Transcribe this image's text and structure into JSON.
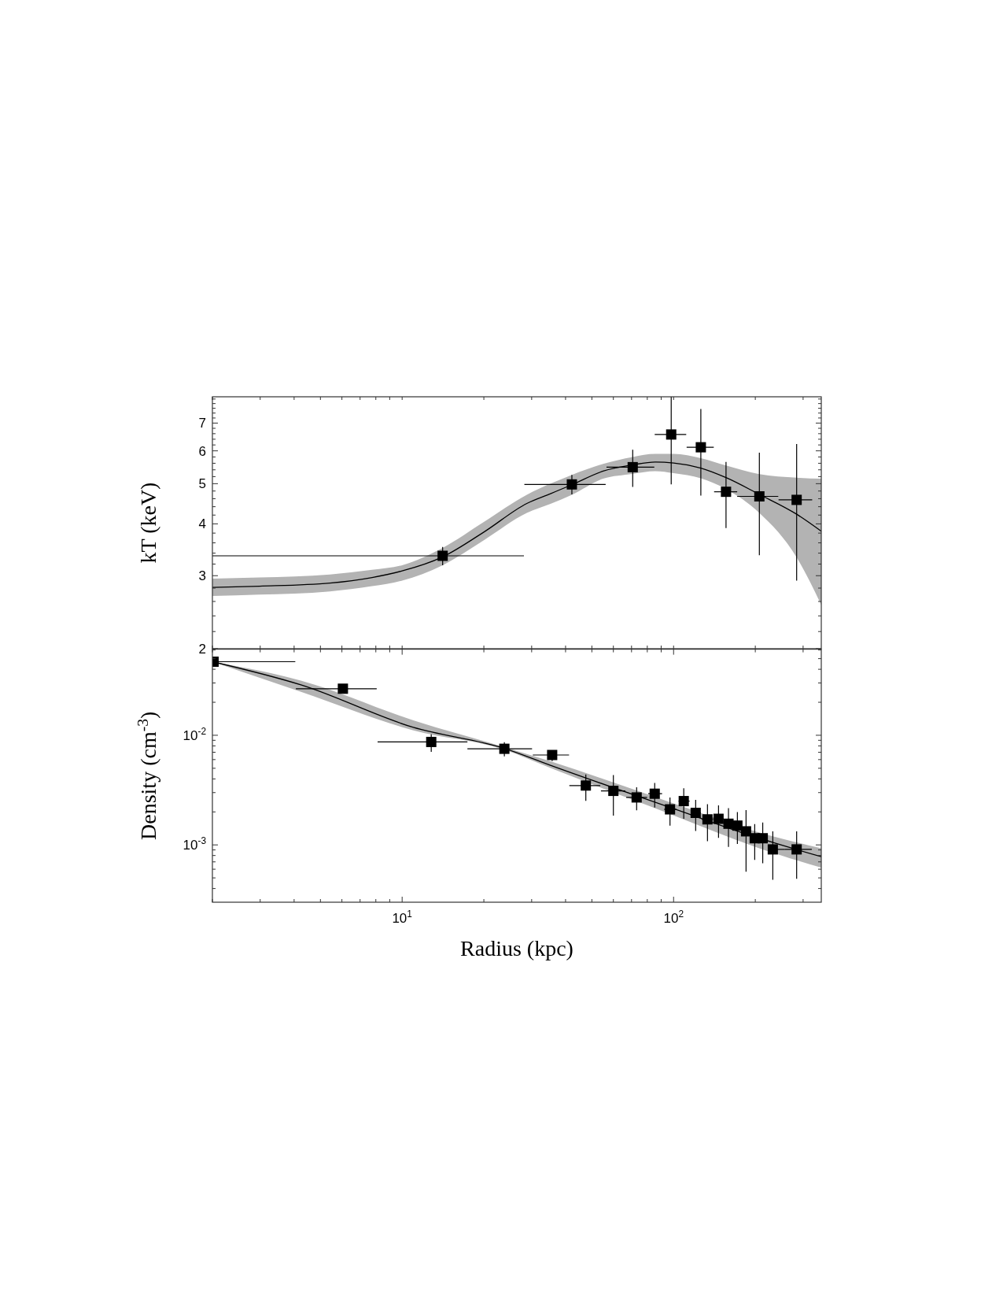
{
  "chart_data": [
    {
      "type": "scatter",
      "ylabel": "kT (keV)",
      "log": "xy",
      "tick_labels": "y",
      "xlim": [
        2,
        350
      ],
      "ylim": [
        2,
        8.1
      ],
      "xticks": [
        {
          "value": 2,
          "label": null
        },
        {
          "value": 3,
          "label": null
        },
        {
          "value": 4,
          "label": null
        },
        {
          "value": 5,
          "label": null
        },
        {
          "value": 6,
          "label": null
        },
        {
          "value": 7,
          "label": null
        },
        {
          "value": 8,
          "label": null
        },
        {
          "value": 9,
          "label": null
        },
        {
          "value": 10,
          "label": null
        },
        {
          "value": 20,
          "label": null
        },
        {
          "value": 30,
          "label": null
        },
        {
          "value": 40,
          "label": null
        },
        {
          "value": 50,
          "label": null
        },
        {
          "value": 60,
          "label": null
        },
        {
          "value": 70,
          "label": null
        },
        {
          "value": 80,
          "label": null
        },
        {
          "value": 90,
          "label": null
        },
        {
          "value": 100,
          "label": null
        },
        {
          "value": 200,
          "label": null
        },
        {
          "value": 300,
          "label": null
        }
      ],
      "yticks": [
        2,
        {
          "value": 2.2,
          "label": null
        },
        {
          "value": 2.4,
          "label": null
        },
        {
          "value": 2.6,
          "label": null
        },
        {
          "value": 2.8,
          "label": null
        },
        3,
        {
          "value": 3.2,
          "label": null
        },
        {
          "value": 3.4,
          "label": null
        },
        {
          "value": 3.6,
          "label": null
        },
        {
          "value": 3.8,
          "label": null
        },
        4,
        {
          "value": 4.2,
          "label": null
        },
        {
          "value": 4.4,
          "label": null
        },
        {
          "value": 4.6,
          "label": null
        },
        {
          "value": 4.8,
          "label": null
        },
        5,
        {
          "value": 5.2,
          "label": null
        },
        {
          "value": 5.4,
          "label": null
        },
        {
          "value": 5.6,
          "label": null
        },
        {
          "value": 5.8,
          "label": null
        },
        6,
        {
          "value": 6.2,
          "label": null
        },
        {
          "value": 6.4,
          "label": null
        },
        {
          "value": 6.6,
          "label": null
        },
        {
          "value": 6.8,
          "label": null
        },
        7,
        {
          "value": 7.2,
          "label": null
        },
        {
          "value": 7.4,
          "label": null
        },
        {
          "value": 7.6,
          "label": null
        },
        {
          "value": 7.8,
          "label": null
        },
        {
          "value": 8,
          "label": null
        }
      ],
      "series": [
        {
          "type": "line",
          "color": "#000000",
          "x": [
            2,
            2.98,
            5.42,
            7.75,
            10,
            14.1,
            20.1,
            28.8,
            35.2,
            42.2,
            55,
            70.7,
            85.6,
            100,
            126,
            156,
            207,
            284,
            350
          ],
          "values": [
            2.81,
            2.83,
            2.88,
            2.97,
            3.08,
            3.33,
            3.83,
            4.48,
            4.73,
            4.97,
            5.36,
            5.55,
            5.64,
            5.61,
            5.45,
            5.17,
            4.71,
            4.22,
            3.84
          ],
          "lower": [
            2.68,
            2.7,
            2.75,
            2.83,
            2.92,
            3.18,
            3.66,
            4.25,
            4.47,
            4.7,
            5.14,
            5.28,
            5.36,
            5.3,
            5.15,
            4.85,
            4.25,
            3.32,
            2.55
          ],
          "upper": [
            2.95,
            2.97,
            3.02,
            3.1,
            3.18,
            3.5,
            4.05,
            4.7,
            5.0,
            5.25,
            5.58,
            5.8,
            5.9,
            5.9,
            5.76,
            5.53,
            5.27,
            5.17,
            5.14
          ]
        },
        {
          "marker": "square",
          "color": "#000000",
          "x": [
            14.1,
            42.2,
            70.7,
            98,
            126,
            156,
            207,
            284
          ],
          "values": [
            3.35,
            4.98,
            5.48,
            6.57,
            6.12,
            4.78,
            4.66,
            4.57
          ],
          "errors": [
            [
              3.18,
              3.52
            ],
            [
              4.71,
              5.25
            ],
            [
              4.91,
              6.04
            ],
            [
              4.98,
              8.1
            ],
            [
              4.68,
              7.57
            ],
            [
              3.91,
              5.64
            ],
            [
              3.36,
              5.94
            ],
            [
              2.92,
              6.23
            ]
          ],
          "xerrors": [
            [
              2,
              28.1
            ],
            [
              28.2,
              56.2
            ],
            [
              56.6,
              84.9
            ],
            [
              85.2,
              111.3
            ],
            [
              111.7,
              140.6
            ],
            [
              141,
              171.5
            ],
            [
              171.5,
              243
            ],
            [
              243.6,
              324
            ]
          ]
        }
      ]
    },
    {
      "type": "scatter",
      "ylabel": "Density (cm$^{-3}$)",
      "xlabel": "Radius (kpc)",
      "log": "xy",
      "xlim": [
        2,
        350
      ],
      "ylim": [
        0.0003,
        0.061
      ],
      "xticks": [
        {
          "value": 2,
          "label": null
        },
        {
          "value": 3,
          "label": null
        },
        {
          "value": 4,
          "label": null
        },
        {
          "value": 5,
          "label": null
        },
        {
          "value": 6,
          "label": null
        },
        {
          "value": 7,
          "label": null
        },
        {
          "value": 8,
          "label": null
        },
        {
          "value": 9,
          "label": null
        },
        {
          "value": 10,
          "label": "10$^{1}$"
        },
        {
          "value": 20,
          "label": null
        },
        {
          "value": 30,
          "label": null
        },
        {
          "value": 40,
          "label": null
        },
        {
          "value": 50,
          "label": null
        },
        {
          "value": 60,
          "label": null
        },
        {
          "value": 70,
          "label": null
        },
        {
          "value": 80,
          "label": null
        },
        {
          "value": 90,
          "label": null
        },
        {
          "value": 100,
          "label": "10$^{2}$"
        },
        {
          "value": 200,
          "label": null
        },
        {
          "value": 300,
          "label": null
        }
      ],
      "yticks": [
        {
          "value": 0.0004,
          "label": null
        },
        {
          "value": 0.0005,
          "label": null
        },
        {
          "value": 0.0006,
          "label": null
        },
        {
          "value": 0.0007,
          "label": null
        },
        {
          "value": 0.0008,
          "label": null
        },
        {
          "value": 0.0009,
          "label": null
        },
        {
          "value": 0.001,
          "label": "10$^{-3}$"
        },
        {
          "value": 0.002,
          "label": null
        },
        {
          "value": 0.003,
          "label": null
        },
        {
          "value": 0.004,
          "label": null
        },
        {
          "value": 0.005,
          "label": null
        },
        {
          "value": 0.006,
          "label": null
        },
        {
          "value": 0.007,
          "label": null
        },
        {
          "value": 0.008,
          "label": null
        },
        {
          "value": 0.009,
          "label": null
        },
        {
          "value": 0.01,
          "label": "10$^{-2}$"
        },
        {
          "value": 0.02,
          "label": null
        },
        {
          "value": 0.03,
          "label": null
        },
        {
          "value": 0.04,
          "label": null
        },
        {
          "value": 0.05,
          "label": null
        },
        {
          "value": 0.06,
          "label": null
        }
      ],
      "series": [
        {
          "type": "line",
          "color": "#000000",
          "x": [
            2,
            4.26,
            11,
            23.8,
            35.2,
            100,
            200,
            350
          ],
          "values": [
            0.0469,
            0.0287,
            0.0118,
            0.0076,
            0.00532,
            0.00214,
            0.00118,
            0.00078
          ],
          "lower": [
            0.0469,
            0.0248,
            0.0111,
            0.0074,
            0.00503,
            0.00186,
            0.00096,
            0.00062
          ],
          "upper": [
            0.0469,
            0.0314,
            0.0137,
            0.0078,
            0.00578,
            0.00239,
            0.00133,
            0.00093
          ]
        },
        {
          "marker": "square",
          "color": "#000000",
          "x": [
            2.02,
            6.05,
            12.8,
            23.8,
            35.7,
            47.5,
            60,
            73.1,
            85.2,
            97,
            109,
            120.6,
            133.3,
            146.4,
            159.3,
            171.8,
            184.9,
            199,
            213,
            232,
            284
          ],
          "values": [
            0.0469,
            0.0266,
            0.00869,
            0.00753,
            0.00661,
            0.00348,
            0.00311,
            0.00271,
            0.00293,
            0.00211,
            0.00251,
            0.00196,
            0.00171,
            0.00173,
            0.00156,
            0.0015,
            0.00133,
            0.00115,
            0.00115,
            0.00091,
            0.00091
          ],
          "errors": [
            null,
            null,
            [
              0.00706,
              0.0102
            ],
            [
              0.00641,
              0.00863
            ],
            [
              0.00581,
              0.00727
            ],
            [
              0.00252,
              0.00439
            ],
            [
              0.00185,
              0.00434
            ],
            [
              0.00207,
              0.00336
            ],
            [
              0.00219,
              0.00367
            ],
            [
              0.0015,
              0.00271
            ],
            [
              0.00173,
              0.00328
            ],
            [
              0.00134,
              0.00258
            ],
            [
              0.00108,
              0.00235
            ],
            [
              0.00116,
              0.00229
            ],
            [
              0.00096,
              0.00216
            ],
            [
              0.00102,
              0.00199
            ],
            [
              0.00057,
              0.00208
            ],
            [
              0.00073,
              0.00155
            ],
            [
              0.00068,
              0.0016
            ],
            [
              0.00048,
              0.00133
            ],
            [
              0.00049,
              0.00133
            ]
          ],
          "xerrors": [
            [
              2,
              4.04
            ],
            [
              4.06,
              8.06
            ],
            [
              8.12,
              17.4
            ],
            [
              17.4,
              30.1
            ],
            [
              30.3,
              41.2
            ],
            [
              41.3,
              53.7
            ],
            [
              54,
              66.4
            ],
            [
              66.9,
              79.9
            ],
            [
              80.6,
              90.7
            ],
            [
              92.3,
              102.5
            ],
            [
              104.3,
              114.6
            ],
            [
              115.8,
              126.1
            ],
            [
              127,
              139.7
            ],
            [
              140,
              153
            ],
            null,
            null,
            [
              179,
              191
            ],
            null,
            null,
            [
              226,
              257
            ],
            [
              257,
              323
            ]
          ]
        }
      ]
    }
  ]
}
